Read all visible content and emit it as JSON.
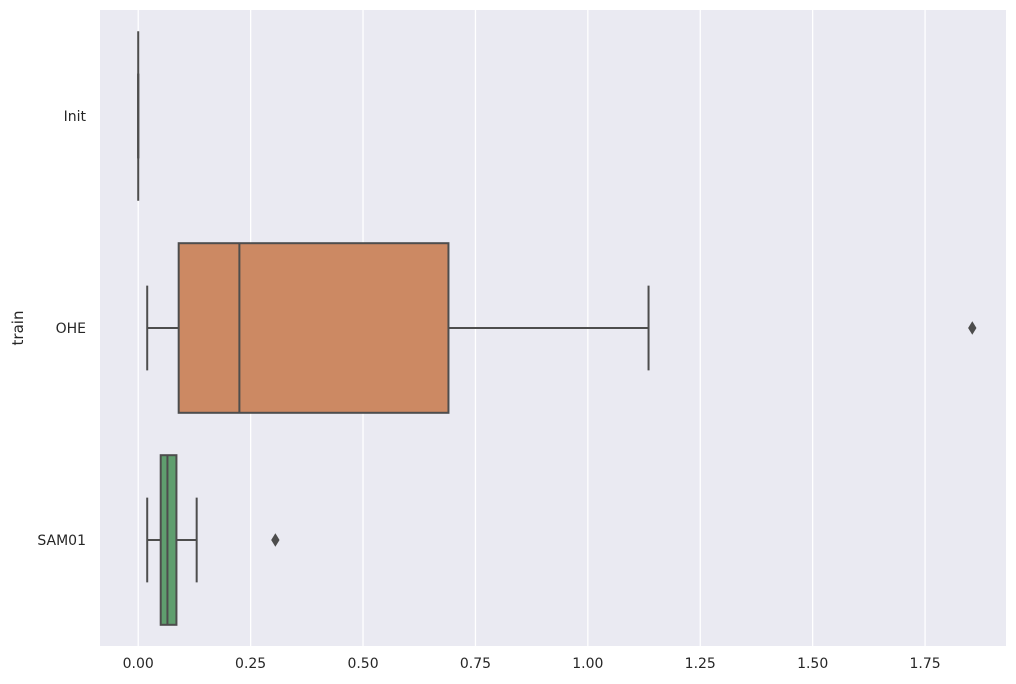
{
  "chart_data": {
    "type": "boxplot",
    "orientation": "horizontal",
    "title": "",
    "xlabel": "",
    "ylabel": "train",
    "xlim": [
      -0.085,
      1.93
    ],
    "x_ticks": [
      {
        "value": 0.0,
        "label": "0.00"
      },
      {
        "value": 0.25,
        "label": "0.25"
      },
      {
        "value": 0.5,
        "label": "0.50"
      },
      {
        "value": 0.75,
        "label": "0.75"
      },
      {
        "value": 1.0,
        "label": "1.00"
      },
      {
        "value": 1.25,
        "label": "1.25"
      },
      {
        "value": 1.5,
        "label": "1.50"
      },
      {
        "value": 1.75,
        "label": "1.75"
      }
    ],
    "grid": true,
    "categories": [
      "Init",
      "OHE",
      "SAM01"
    ],
    "boxes": [
      {
        "category": "Init",
        "whisker_low": 0.0,
        "q1": 0.0,
        "median": 0.0,
        "q3": 0.0,
        "whisker_high": 0.0,
        "outliers": [],
        "color": "#4c72b0"
      },
      {
        "category": "OHE",
        "whisker_low": 0.02,
        "q1": 0.09,
        "median": 0.225,
        "q3": 0.69,
        "whisker_high": 1.135,
        "outliers": [
          1.855
        ],
        "color": "#cc8963"
      },
      {
        "category": "SAM01",
        "whisker_low": 0.02,
        "q1": 0.05,
        "median": 0.065,
        "q3": 0.085,
        "whisker_high": 0.13,
        "outliers": [
          0.305
        ],
        "color": "#5f9e6e"
      }
    ]
  },
  "style": {
    "plot_background": "#eaeaf2",
    "grid_color": "#ffffff",
    "line_color": "#4d4d4d"
  }
}
